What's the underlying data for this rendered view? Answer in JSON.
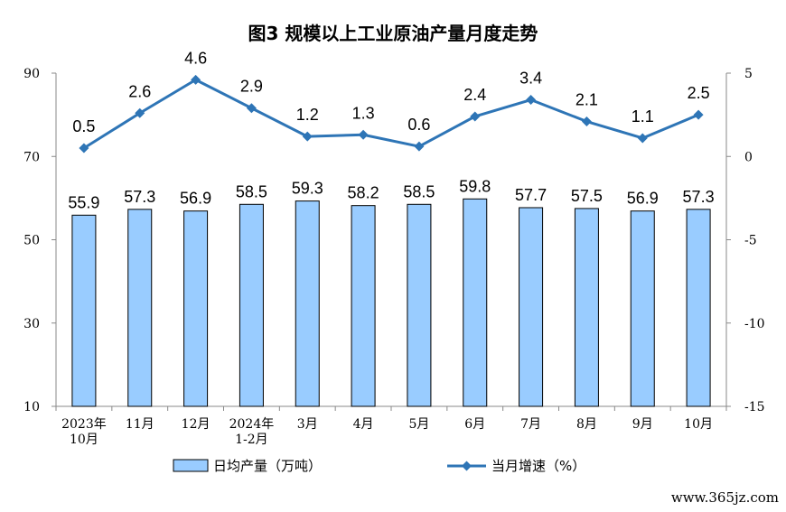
{
  "chart_data": {
    "type": "bar",
    "title": "图3  规模以上工业原油产量月度走势",
    "categories": [
      [
        "2023年",
        "10月"
      ],
      [
        "11月"
      ],
      [
        "12月"
      ],
      [
        "2024年",
        "1-2月"
      ],
      [
        "3月"
      ],
      [
        "4月"
      ],
      [
        "5月"
      ],
      [
        "6月"
      ],
      [
        "7月"
      ],
      [
        "8月"
      ],
      [
        "9月"
      ],
      [
        "10月"
      ]
    ],
    "series": [
      {
        "name": "日均产量（万吨）",
        "type": "bar",
        "axis": "left",
        "color": "#99CCFF",
        "values": [
          55.9,
          57.3,
          56.9,
          58.5,
          59.3,
          58.2,
          58.5,
          59.8,
          57.7,
          57.5,
          56.9,
          57.3
        ]
      },
      {
        "name": "当月增速（%）",
        "type": "line",
        "axis": "right",
        "color": "#2E75B6",
        "values": [
          0.5,
          2.6,
          4.6,
          2.9,
          1.2,
          1.3,
          0.6,
          2.4,
          3.4,
          2.1,
          1.1,
          2.5
        ]
      }
    ],
    "y_left": {
      "min": 10,
      "max": 90,
      "ticks": [
        10,
        30,
        50,
        70,
        90
      ]
    },
    "y_right": {
      "min": -15,
      "max": 5,
      "ticks": [
        -15,
        -10,
        -5,
        0,
        5
      ]
    },
    "legend_position": "bottom",
    "grid": false
  },
  "watermark": "www.365jz.com"
}
